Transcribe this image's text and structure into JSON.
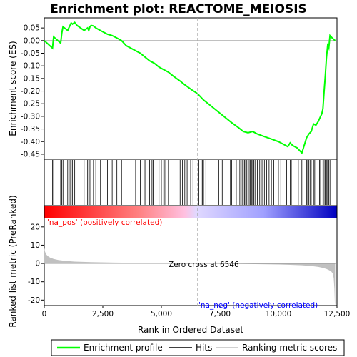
{
  "title": "Enrichment plot: REACTOME_MEIOSIS",
  "colors": {
    "enrichment_line": "#00ff00",
    "hits": "#000000",
    "ranking_fill": "#c0c0c0",
    "pos_label": "#ff0000",
    "neg_label": "#0000ff",
    "zero_cross_line": "#aaaaaa"
  },
  "chart_data": [
    {
      "type": "line",
      "panel": "enrichment",
      "ylabel": "Enrichment score (ES)",
      "ylim": [
        -0.47,
        0.09
      ],
      "yticks": [
        0.05,
        0.0,
        -0.05,
        -0.1,
        -0.15,
        -0.2,
        -0.25,
        -0.3,
        -0.35,
        -0.4,
        -0.45
      ],
      "ytick_labels": [
        "0.05",
        "0.00",
        "-0.05",
        "-0.10",
        "-0.15",
        "-0.20",
        "-0.25",
        "-0.30",
        "-0.35",
        "-0.40",
        "-0.45"
      ],
      "xlim": [
        0,
        12500
      ],
      "series": [
        {
          "name": "Enrichment profile",
          "x": [
            0,
            350,
            400,
            700,
            750,
            800,
            1000,
            1050,
            1100,
            1150,
            1200,
            1300,
            1400,
            1700,
            1850,
            1900,
            1950,
            2000,
            2100,
            2200,
            2400,
            2700,
            2900,
            3100,
            3300,
            3500,
            3900,
            4100,
            4300,
            4500,
            4700,
            4900,
            5100,
            5300,
            5500,
            5800,
            6000,
            6300,
            6546,
            6800,
            7200,
            7600,
            8000,
            8300,
            8500,
            8700,
            8900,
            9100,
            9400,
            9700,
            10000,
            10200,
            10400,
            10500,
            10600,
            10800,
            11000,
            11100,
            11200,
            11300,
            11400,
            11500,
            11600,
            11700,
            11800,
            11850,
            11900,
            11950,
            12000,
            12050,
            12100,
            12150,
            12200,
            12300,
            12420
          ],
          "y": [
            0.0,
            -0.03,
            0.015,
            -0.01,
            0.03,
            0.055,
            0.04,
            0.05,
            0.06,
            0.07,
            0.065,
            0.072,
            0.06,
            0.04,
            0.05,
            0.04,
            0.055,
            0.06,
            0.058,
            0.05,
            0.04,
            0.025,
            0.02,
            0.01,
            0.0,
            -0.02,
            -0.04,
            -0.05,
            -0.065,
            -0.08,
            -0.09,
            -0.105,
            -0.115,
            -0.125,
            -0.14,
            -0.16,
            -0.175,
            -0.195,
            -0.21,
            -0.235,
            -0.265,
            -0.295,
            -0.325,
            -0.345,
            -0.36,
            -0.365,
            -0.36,
            -0.37,
            -0.38,
            -0.39,
            -0.4,
            -0.41,
            -0.42,
            -0.405,
            -0.415,
            -0.425,
            -0.445,
            -0.415,
            -0.385,
            -0.37,
            -0.36,
            -0.33,
            -0.335,
            -0.32,
            -0.3,
            -0.29,
            -0.27,
            -0.2,
            -0.14,
            -0.07,
            -0.02,
            -0.03,
            0.02,
            0.01,
            0.0
          ]
        }
      ]
    },
    {
      "type": "hits",
      "panel": "hits",
      "positions": [
        350,
        400,
        700,
        750,
        800,
        1000,
        1050,
        1100,
        1150,
        1200,
        1300,
        1700,
        1850,
        1900,
        1950,
        2000,
        2100,
        2200,
        2400,
        2700,
        2900,
        3100,
        3300,
        3900,
        4100,
        4300,
        4500,
        4600,
        4650,
        4900,
        5000,
        5100,
        5150,
        5200,
        5300,
        5800,
        5900,
        6000,
        6100,
        6250,
        6350,
        6600,
        6700,
        6750,
        6800,
        6900,
        7450,
        7600,
        7950,
        8000,
        8200,
        8350,
        8400,
        8450,
        8500,
        8550,
        8600,
        8650,
        8700,
        8750,
        8800,
        8850,
        8900,
        8950,
        9000,
        9100,
        9200,
        9300,
        9400,
        9500,
        9600,
        9700,
        9800,
        10000,
        10100,
        10350,
        10500,
        10550,
        10850,
        11000,
        11050,
        11200,
        11250,
        11300,
        11350,
        11400,
        11500,
        11550,
        11750,
        11800,
        11900,
        11950,
        12000,
        12050,
        12100,
        12150,
        12200
      ]
    },
    {
      "type": "area",
      "panel": "ranking",
      "xlabel": "Rank in Ordered Dataset",
      "ylabel": "Ranked list metric (PreRanked)",
      "ylim": [
        -23,
        25
      ],
      "yticks": [
        20,
        10,
        0,
        -10,
        -20
      ],
      "ytick_labels": [
        "20",
        "10",
        "0",
        "-10",
        "-20"
      ],
      "xticks": [
        0,
        2500,
        5000,
        7500,
        10000,
        12500
      ],
      "xtick_labels": [
        "0",
        "2,500",
        "5,000",
        "7,500",
        "10,000",
        "12,500"
      ],
      "x": [
        0,
        30,
        80,
        150,
        250,
        400,
        600,
        900,
        1300,
        2000,
        3000,
        4000,
        5000,
        6000,
        6546,
        7000,
        8000,
        9000,
        10000,
        10500,
        11000,
        11400,
        11700,
        11900,
        12050,
        12150,
        12250,
        12320,
        12360,
        12390,
        12410,
        12420
      ],
      "values": [
        8.5,
        6.5,
        5.0,
        4.0,
        3.2,
        2.5,
        1.9,
        1.4,
        1.0,
        0.7,
        0.45,
        0.3,
        0.18,
        0.07,
        0.0,
        -0.08,
        -0.2,
        -0.35,
        -0.55,
        -0.75,
        -1.0,
        -1.4,
        -1.9,
        -2.4,
        -3.0,
        -3.6,
        -4.3,
        -5.5,
        -8.0,
        -14.0,
        -21.5,
        -23.0
      ],
      "annotations": {
        "pos": "'na_pos' (positively correlated)",
        "neg": "'na_neg' (negatively correlated)",
        "zero_cross": "Zero cross at 6546",
        "zero_cross_rank": 6546
      }
    }
  ],
  "legend": {
    "items": [
      {
        "label": "Enrichment profile",
        "kind": "line",
        "color": "#00ff00"
      },
      {
        "label": "Hits",
        "kind": "line",
        "color": "#000000"
      },
      {
        "label": "Ranking metric scores",
        "kind": "line",
        "color": "#c0c0c0"
      }
    ]
  }
}
